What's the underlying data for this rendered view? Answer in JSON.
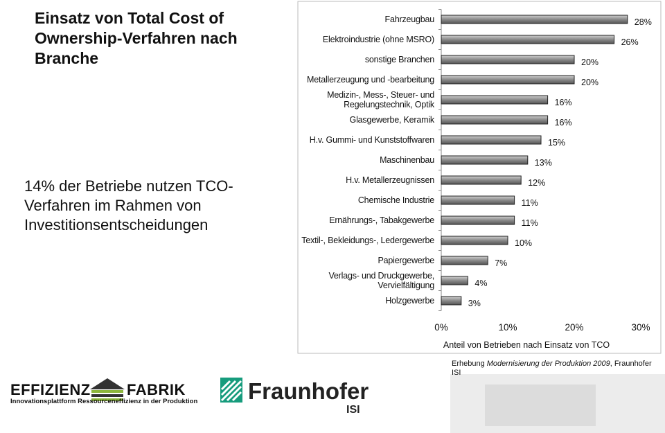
{
  "chart_data": {
    "type": "bar",
    "orientation": "horizontal",
    "title": "Einsatz von Total Cost of Ownership-Verfahren nach Branche",
    "subtitle": "14% der Betriebe nutzen TCO-Verfahren im Rahmen von Investitionsentscheidungen",
    "categories": [
      "Fahrzeugbau",
      "Elektroindustrie (ohne MSRO)",
      "sonstige Branchen",
      "Metallerzeugung und -bearbeitung",
      "Medizin-, Mess-, Steuer- und Regelungstechnik, Optik",
      "Glasgewerbe, Keramik",
      "H.v. Gummi- und Kunststoffwaren",
      "Maschinenbau",
      "H.v. Metallerzeugnissen",
      "Chemische Industrie",
      "Ernährungs-, Tabakgewerbe",
      "Textil-, Bekleidungs-, Ledergewerbe",
      "Papiergewerbe",
      "Verlags- und Druckgewerbe, Vervielfältigung",
      "Holzgewerbe"
    ],
    "values": [
      28,
      26,
      20,
      20,
      16,
      16,
      15,
      13,
      12,
      11,
      11,
      10,
      7,
      4,
      3
    ],
    "value_labels": [
      "28%",
      "26%",
      "20%",
      "20%",
      "16%",
      "16%",
      "15%",
      "13%",
      "12%",
      "11%",
      "11%",
      "10%",
      "7%",
      "4%",
      "3%"
    ],
    "color": "#8a8a8a",
    "xlim": [
      0,
      30
    ],
    "xticks": [
      {
        "value": 0,
        "label": "0%"
      },
      {
        "value": 10,
        "label": "10%"
      },
      {
        "value": 20,
        "label": "20%"
      },
      {
        "value": 30,
        "label": "30%"
      }
    ],
    "x_label": "Anteil von Betrieben nach Einsatz von TCO",
    "source": [
      "Erhebung ",
      "Modernisierung der Produktion 2009",
      ", Fraunhofer ISI"
    ]
  },
  "logos": {
    "effizienz_fabrik": [
      "EFFIZIENZ",
      "FABRIK"
    ],
    "effizienz_tagline": "Innovationsplattform Ressourceneffizienz in der Produktion",
    "fraunhofer": "Fraunhofer",
    "fraunhofer_unit": "ISI"
  }
}
